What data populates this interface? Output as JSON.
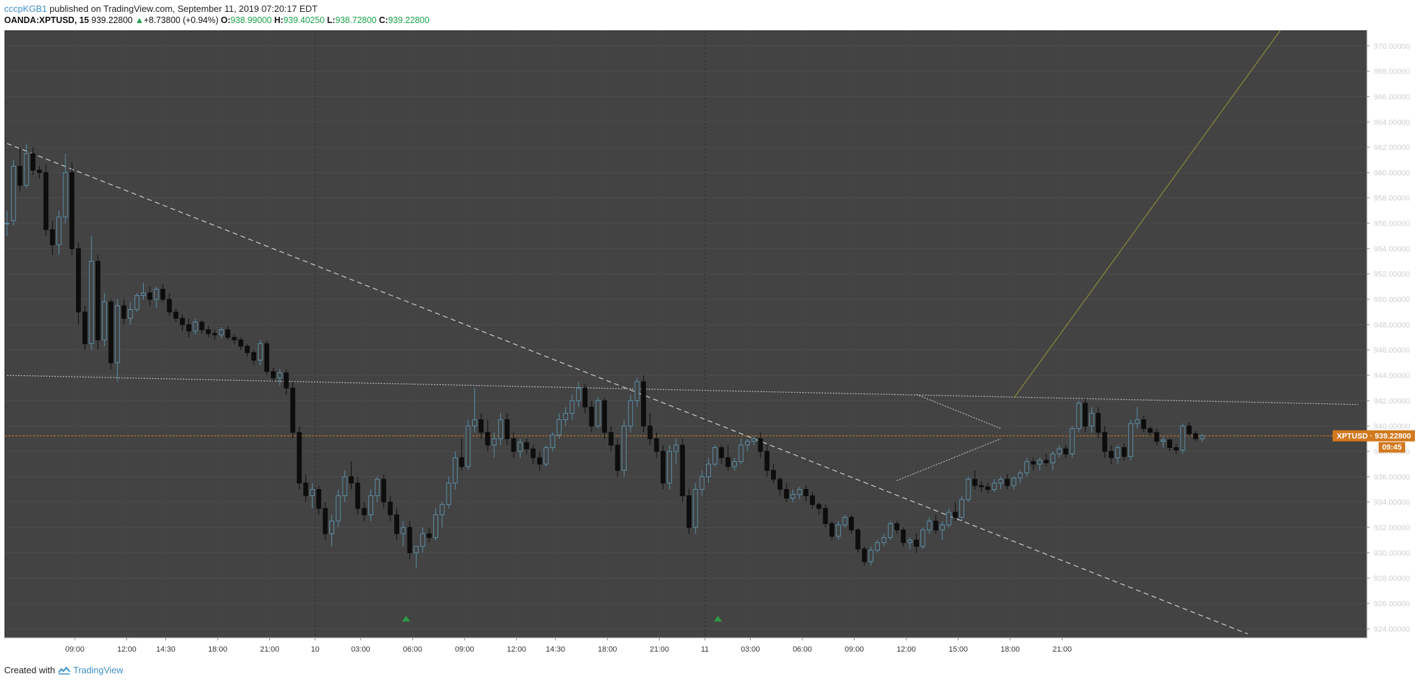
{
  "header": {
    "user": "cccpKGB1",
    "published_text": "published on TradingView.com, September 11, 2019 07:20:17 EDT",
    "symbol": "OANDA:XPTUSD, 15",
    "last_price": "939.22800",
    "change_arrow": "▲",
    "change": "+8.73800 (+0.94%)",
    "open_label": "O:",
    "open": "938.99000",
    "high_label": "H:",
    "high": "939.40250",
    "low_label": "L:",
    "low": "938.72800",
    "close_label": "C:",
    "close": "939.22800"
  },
  "price_tag": {
    "label": "XPTUSD · 939.22800",
    "countdown": "09:45"
  },
  "footer": {
    "created_with": "Created with",
    "brand": "TradingView"
  },
  "colors": {
    "background": "#434343",
    "up_candle": "#5b8fa8",
    "down_candle": "#0d0d0d",
    "price_line": "#d2781e",
    "trend_line": "#cfcfcf",
    "projection_line": "#8a8a3c",
    "marker": "#2e9a46"
  },
  "chart_data": {
    "type": "candlestick",
    "symbol": "OANDA:XPTUSD",
    "interval": "15",
    "ylim": [
      923.3,
      971.2
    ],
    "y_ticks": [
      "970.00000",
      "968.00000",
      "966.00000",
      "964.00000",
      "962.00000",
      "960.00000",
      "958.00000",
      "956.00000",
      "954.00000",
      "952.00000",
      "950.00000",
      "948.00000",
      "946.00000",
      "944.00000",
      "942.00000",
      "940.00000",
      "938.00000",
      "936.00000",
      "934.00000",
      "932.00000",
      "930.00000",
      "928.00000",
      "926.00000",
      "924.00000"
    ],
    "x_ticks": [
      "09:00",
      "12:00",
      "14:30",
      "18:00",
      "21:00",
      "10",
      "03:00",
      "06:00",
      "09:00",
      "12:00",
      "14:30",
      "18:00",
      "21:00",
      "11",
      "03:00",
      "06:00",
      "09:00",
      "12:00",
      "15:00",
      "18:00",
      "21:00"
    ],
    "current_price": 939.228,
    "candle_ohlc": [
      [
        956.0,
        957.0,
        955.0,
        956.0
      ],
      [
        956.2,
        961.0,
        955.8,
        960.5
      ],
      [
        960.5,
        962.0,
        958.5,
        959.0
      ],
      [
        959.0,
        962.3,
        958.8,
        961.5
      ],
      [
        961.5,
        962.0,
        959.8,
        960.2
      ],
      [
        960.2,
        960.5,
        959.5,
        960.0
      ],
      [
        960.0,
        960.6,
        955.0,
        955.5
      ],
      [
        955.5,
        956.2,
        953.5,
        954.3
      ],
      [
        954.3,
        957.0,
        953.5,
        956.5
      ],
      [
        956.5,
        961.5,
        956.0,
        960.0
      ],
      [
        960.0,
        960.8,
        953.5,
        954.0
      ],
      [
        954.0,
        954.5,
        948.0,
        949.0
      ],
      [
        949.0,
        949.5,
        946.0,
        946.5
      ],
      [
        946.5,
        955.0,
        946.0,
        953.0
      ],
      [
        953.0,
        953.5,
        946.0,
        946.8
      ],
      [
        946.8,
        950.5,
        946.3,
        949.8
      ],
      [
        949.8,
        950.0,
        944.5,
        945.0
      ],
      [
        945.0,
        950.0,
        943.5,
        949.5
      ],
      [
        949.5,
        950.0,
        948.0,
        948.5
      ],
      [
        948.5,
        949.8,
        948.0,
        949.2
      ],
      [
        949.2,
        950.5,
        949.0,
        950.3
      ],
      [
        950.3,
        951.3,
        950.0,
        950.5
      ],
      [
        950.5,
        951.0,
        949.5,
        950.0
      ],
      [
        950.0,
        951.0,
        949.3,
        950.8
      ],
      [
        950.8,
        951.2,
        949.8,
        950.0
      ],
      [
        950.0,
        950.5,
        948.7,
        949.0
      ],
      [
        949.0,
        949.3,
        948.2,
        948.5
      ],
      [
        948.5,
        948.8,
        947.5,
        948.0
      ],
      [
        948.0,
        948.5,
        947.0,
        947.5
      ],
      [
        947.5,
        948.5,
        947.2,
        948.2
      ],
      [
        948.2,
        948.4,
        947.3,
        947.6
      ],
      [
        947.6,
        947.9,
        947.0,
        947.3
      ],
      [
        947.3,
        947.6,
        946.8,
        947.2
      ],
      [
        947.2,
        947.8,
        946.9,
        947.6
      ],
      [
        947.6,
        947.9,
        946.8,
        947.0
      ],
      [
        947.0,
        947.2,
        946.5,
        946.8
      ],
      [
        946.8,
        947.0,
        946.0,
        946.3
      ],
      [
        946.3,
        946.5,
        945.5,
        945.8
      ],
      [
        945.8,
        946.0,
        944.8,
        945.2
      ],
      [
        945.2,
        946.8,
        944.8,
        946.5
      ],
      [
        946.5,
        946.7,
        944.0,
        944.3
      ],
      [
        944.3,
        944.6,
        943.5,
        943.8
      ],
      [
        943.8,
        944.5,
        943.2,
        944.2
      ],
      [
        944.2,
        944.5,
        942.5,
        943.0
      ],
      [
        943.0,
        943.5,
        939.0,
        939.5
      ],
      [
        939.5,
        940.0,
        935.0,
        935.5
      ],
      [
        935.5,
        936.2,
        934.0,
        934.5
      ],
      [
        934.5,
        935.5,
        933.5,
        935.0
      ],
      [
        935.0,
        935.3,
        933.0,
        933.5
      ],
      [
        933.5,
        934.0,
        931.0,
        931.5
      ],
      [
        931.5,
        933.0,
        930.5,
        932.5
      ],
      [
        932.5,
        935.0,
        932.0,
        934.5
      ],
      [
        934.5,
        936.5,
        934.0,
        936.0
      ],
      [
        936.0,
        937.2,
        935.0,
        935.5
      ],
      [
        935.5,
        936.0,
        933.0,
        933.5
      ],
      [
        933.5,
        934.0,
        932.5,
        933.0
      ],
      [
        933.0,
        935.0,
        932.5,
        934.5
      ],
      [
        934.5,
        936.0,
        934.0,
        935.8
      ],
      [
        935.8,
        936.2,
        933.5,
        934.0
      ],
      [
        934.0,
        934.5,
        932.5,
        933.0
      ],
      [
        933.0,
        933.5,
        931.0,
        931.5
      ],
      [
        931.5,
        932.5,
        930.5,
        932.0
      ],
      [
        932.0,
        932.5,
        929.5,
        930.0
      ],
      [
        930.0,
        930.5,
        928.8,
        930.5
      ],
      [
        930.5,
        932.0,
        930.0,
        931.5
      ],
      [
        931.5,
        932.0,
        930.8,
        931.2
      ],
      [
        931.2,
        933.5,
        931.0,
        933.0
      ],
      [
        933.0,
        934.0,
        932.0,
        933.8
      ],
      [
        933.8,
        936.0,
        933.5,
        935.5
      ],
      [
        935.5,
        938.0,
        935.0,
        937.5
      ],
      [
        937.5,
        939.0,
        936.5,
        936.8
      ],
      [
        936.8,
        940.5,
        936.5,
        940.0
      ],
      [
        940.0,
        943.0,
        939.5,
        940.5
      ],
      [
        940.5,
        941.0,
        939.0,
        939.5
      ],
      [
        939.5,
        940.5,
        938.0,
        938.5
      ],
      [
        938.5,
        939.5,
        937.5,
        939.0
      ],
      [
        939.0,
        941.0,
        938.5,
        940.5
      ],
      [
        940.5,
        941.0,
        938.5,
        939.0
      ],
      [
        939.0,
        939.5,
        937.5,
        938.0
      ],
      [
        938.0,
        939.0,
        937.5,
        938.7
      ],
      [
        938.7,
        939.0,
        937.8,
        938.2
      ],
      [
        938.2,
        938.5,
        937.0,
        937.5
      ],
      [
        937.5,
        938.0,
        936.5,
        937.0
      ],
      [
        937.0,
        938.5,
        936.8,
        938.3
      ],
      [
        938.3,
        939.5,
        938.0,
        939.3
      ],
      [
        939.3,
        941.0,
        939.0,
        940.5
      ],
      [
        940.5,
        941.5,
        940.0,
        941.0
      ],
      [
        941.0,
        942.5,
        940.5,
        942.0
      ],
      [
        942.0,
        943.5,
        941.5,
        943.0
      ],
      [
        943.0,
        943.3,
        941.0,
        941.5
      ],
      [
        941.5,
        942.0,
        939.5,
        940.0
      ],
      [
        940.0,
        942.3,
        939.8,
        942.0
      ],
      [
        942.0,
        942.2,
        939.0,
        939.5
      ],
      [
        939.5,
        940.0,
        938.0,
        938.5
      ],
      [
        938.5,
        939.0,
        936.0,
        936.5
      ],
      [
        936.5,
        940.5,
        936.0,
        940.0
      ],
      [
        940.0,
        942.5,
        939.5,
        942.0
      ],
      [
        942.0,
        943.8,
        941.5,
        943.5
      ],
      [
        943.5,
        944.0,
        939.5,
        940.0
      ],
      [
        940.0,
        941.0,
        938.5,
        939.0
      ],
      [
        939.0,
        939.5,
        937.5,
        938.0
      ],
      [
        938.0,
        938.5,
        935.0,
        935.5
      ],
      [
        935.5,
        938.5,
        935.0,
        938.0
      ],
      [
        938.0,
        939.0,
        937.0,
        938.5
      ],
      [
        938.5,
        939.0,
        934.0,
        934.5
      ],
      [
        934.5,
        935.0,
        931.5,
        932.0
      ],
      [
        932.0,
        935.5,
        931.5,
        935.0
      ],
      [
        935.0,
        936.5,
        934.5,
        936.0
      ],
      [
        936.0,
        937.5,
        935.5,
        937.0
      ],
      [
        937.0,
        938.5,
        936.8,
        938.3
      ],
      [
        938.3,
        938.5,
        937.0,
        937.5
      ],
      [
        937.5,
        938.5,
        936.5,
        936.8
      ],
      [
        936.8,
        937.5,
        936.5,
        937.2
      ],
      [
        937.2,
        939.0,
        937.0,
        938.5
      ],
      [
        938.5,
        939.0,
        938.0,
        938.8
      ],
      [
        938.8,
        939.2,
        938.5,
        939.0
      ],
      [
        939.0,
        939.5,
        937.5,
        938.0
      ],
      [
        938.0,
        938.5,
        936.0,
        936.5
      ],
      [
        936.5,
        937.0,
        935.5,
        935.8
      ],
      [
        935.8,
        936.0,
        934.5,
        935.0
      ],
      [
        935.0,
        935.5,
        934.0,
        934.3
      ],
      [
        934.3,
        935.0,
        934.0,
        934.6
      ],
      [
        934.6,
        935.2,
        934.2,
        935.0
      ],
      [
        935.0,
        935.3,
        934.0,
        934.5
      ],
      [
        934.5,
        934.8,
        933.5,
        933.8
      ],
      [
        933.8,
        934.0,
        933.0,
        933.5
      ],
      [
        933.5,
        933.8,
        932.0,
        932.3
      ],
      [
        932.3,
        932.5,
        931.0,
        931.3
      ],
      [
        931.3,
        932.5,
        931.0,
        932.2
      ],
      [
        932.2,
        933.0,
        932.0,
        932.8
      ],
      [
        932.8,
        933.0,
        931.5,
        931.8
      ],
      [
        931.8,
        932.0,
        930.0,
        930.3
      ],
      [
        930.3,
        930.5,
        929.0,
        929.3
      ],
      [
        929.3,
        930.5,
        929.0,
        930.2
      ],
      [
        930.2,
        931.0,
        930.0,
        930.8
      ],
      [
        930.8,
        931.5,
        930.5,
        931.2
      ],
      [
        931.2,
        932.5,
        931.0,
        932.3
      ],
      [
        932.3,
        932.5,
        931.5,
        931.8
      ],
      [
        931.8,
        932.0,
        930.5,
        930.8
      ],
      [
        930.8,
        931.2,
        930.3,
        931.0
      ],
      [
        931.0,
        931.5,
        930.0,
        930.5
      ],
      [
        930.5,
        932.0,
        930.3,
        931.8
      ],
      [
        931.8,
        932.8,
        931.5,
        932.5
      ],
      [
        932.5,
        933.0,
        931.5,
        931.8
      ],
      [
        931.8,
        932.5,
        931.0,
        932.2
      ],
      [
        932.2,
        933.5,
        932.0,
        933.2
      ],
      [
        933.2,
        934.0,
        932.5,
        932.8
      ],
      [
        932.8,
        934.5,
        932.5,
        934.2
      ],
      [
        934.2,
        936.0,
        934.0,
        935.8
      ],
      [
        935.8,
        936.5,
        935.0,
        935.3
      ],
      [
        935.3,
        935.6,
        934.8,
        935.2
      ],
      [
        935.2,
        935.5,
        934.7,
        935.0
      ],
      [
        935.0,
        935.8,
        934.8,
        935.5
      ],
      [
        935.5,
        936.0,
        935.0,
        935.8
      ],
      [
        935.8,
        936.2,
        935.0,
        935.3
      ],
      [
        935.3,
        936.0,
        935.0,
        935.9
      ],
      [
        935.9,
        936.5,
        935.5,
        936.3
      ],
      [
        936.3,
        937.5,
        936.0,
        937.2
      ],
      [
        937.2,
        937.5,
        936.5,
        937.0
      ],
      [
        937.0,
        937.5,
        936.5,
        937.3
      ],
      [
        937.3,
        937.8,
        936.8,
        937.1
      ],
      [
        937.1,
        938.0,
        936.5,
        937.8
      ],
      [
        937.8,
        938.5,
        937.5,
        938.2
      ],
      [
        938.2,
        938.5,
        937.5,
        937.8
      ],
      [
        937.8,
        940.0,
        937.5,
        939.8
      ],
      [
        939.8,
        942.0,
        939.5,
        941.8
      ],
      [
        941.8,
        942.2,
        939.5,
        940.0
      ],
      [
        940.0,
        941.5,
        939.5,
        941.0
      ],
      [
        941.0,
        941.5,
        939.0,
        939.5
      ],
      [
        939.5,
        940.0,
        937.5,
        938.0
      ],
      [
        938.0,
        938.5,
        937.0,
        937.5
      ],
      [
        937.5,
        938.5,
        937.0,
        938.3
      ],
      [
        938.3,
        938.6,
        937.3,
        937.6
      ],
      [
        937.6,
        940.5,
        937.3,
        940.2
      ],
      [
        940.2,
        941.5,
        939.8,
        940.5
      ],
      [
        940.5,
        940.8,
        939.5,
        939.8
      ],
      [
        939.8,
        940.0,
        939.2,
        939.5
      ],
      [
        939.5,
        939.8,
        938.5,
        938.8
      ],
      [
        938.8,
        939.2,
        938.3,
        938.9
      ],
      [
        938.9,
        939.0,
        938.0,
        938.3
      ],
      [
        938.3,
        938.6,
        937.8,
        938.1
      ],
      [
        938.1,
        940.2,
        937.8,
        940.0
      ],
      [
        940.0,
        940.3,
        939.2,
        939.4
      ],
      [
        939.4,
        939.6,
        938.8,
        939.0
      ],
      [
        939.0,
        939.4,
        938.73,
        939.23
      ]
    ],
    "annotations": [
      {
        "type": "trend_line",
        "style": "dashed",
        "from": {
          "time_index": 0,
          "price": 962.3
        },
        "to": {
          "time_index": 191,
          "price": 923.6
        }
      },
      {
        "type": "trend_line",
        "style": "dotted",
        "from": {
          "time_index": 0,
          "price": 944.0
        },
        "to": {
          "time_index": 208,
          "price": 941.7
        }
      },
      {
        "type": "triangle_upper",
        "style": "dotted",
        "from": {
          "time_index": 140,
          "price": 942.5
        },
        "to": {
          "time_index": 153,
          "price": 939.8
        }
      },
      {
        "type": "triangle_lower",
        "style": "dotted",
        "from": {
          "time_index": 137,
          "price": 935.7
        },
        "to": {
          "time_index": 153,
          "price": 939.0
        }
      },
      {
        "type": "projection_line",
        "style": "solid",
        "from": {
          "time_index": 155,
          "price": 942.2
        },
        "to": {
          "time_index": 196,
          "price": 971.2
        }
      },
      {
        "type": "marker_up",
        "time_index": 55,
        "price": 924.8
      },
      {
        "type": "marker_up",
        "time_index": 103,
        "price": 924.8
      }
    ]
  }
}
